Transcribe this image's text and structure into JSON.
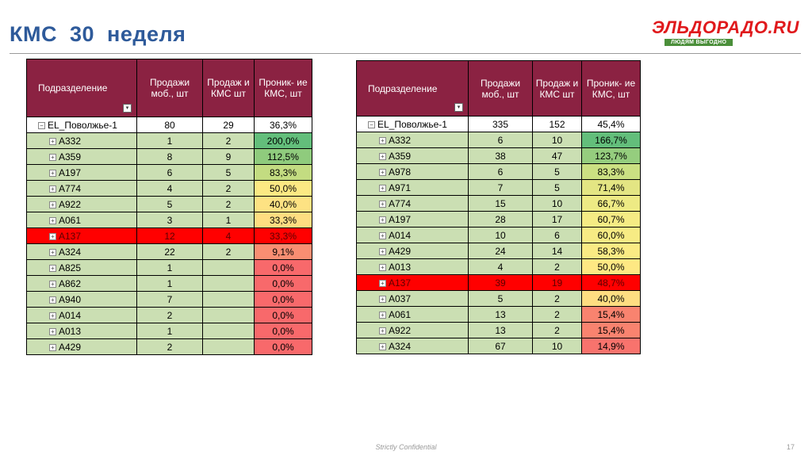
{
  "title": "КМС  30  неделя",
  "logo": {
    "text": "ЭЛЬДОРАДО.RU",
    "tagline": "ЛЮДЯМ ВЫГОДНО"
  },
  "colors": {
    "header_bg": "#8b2242",
    "row_green": "#cbdfb3",
    "highlight_red": "#ff0000",
    "title": "#2e5a9a"
  },
  "table_left": {
    "headers": {
      "division": "Подразделение",
      "sales_mobile": "Продажи моб., шт",
      "sales_kms": "Продаж и КМС шт",
      "penetration": "Проник- ие КМС, шт"
    },
    "rows": [
      {
        "name": "EL_Поволжье-1",
        "sales": "80",
        "kms": "29",
        "pct": "36,3%",
        "pct_color": "#ffffff",
        "total": true
      },
      {
        "name": "A332",
        "sales": "1",
        "kms": "2",
        "pct": "200,0%",
        "pct_color": "#63be7b"
      },
      {
        "name": "A359",
        "sales": "8",
        "kms": "9",
        "pct": "112,5%",
        "pct_color": "#8fcb7d"
      },
      {
        "name": "A197",
        "sales": "6",
        "kms": "5",
        "pct": "83,3%",
        "pct_color": "#c3dc81"
      },
      {
        "name": "A774",
        "sales": "4",
        "kms": "2",
        "pct": "50,0%",
        "pct_color": "#fce983"
      },
      {
        "name": "A922",
        "sales": "5",
        "kms": "2",
        "pct": "40,0%",
        "pct_color": "#fde283"
      },
      {
        "name": "A061",
        "sales": "3",
        "kms": "1",
        "pct": "33,3%",
        "pct_color": "#fedd81"
      },
      {
        "name": "A137",
        "sales": "12",
        "kms": "4",
        "pct": "33,3%",
        "pct_color": "#fedd81",
        "red": true
      },
      {
        "name": "A324",
        "sales": "22",
        "kms": "2",
        "pct": "9,1%",
        "pct_color": "#f98e72"
      },
      {
        "name": "A825",
        "sales": "1",
        "kms": "",
        "pct": "0,0%",
        "pct_color": "#f8696b"
      },
      {
        "name": "A862",
        "sales": "1",
        "kms": "",
        "pct": "0,0%",
        "pct_color": "#f8696b"
      },
      {
        "name": "A940",
        "sales": "7",
        "kms": "",
        "pct": "0,0%",
        "pct_color": "#f8696b"
      },
      {
        "name": "A014",
        "sales": "2",
        "kms": "",
        "pct": "0,0%",
        "pct_color": "#f8696b"
      },
      {
        "name": "A013",
        "sales": "1",
        "kms": "",
        "pct": "0,0%",
        "pct_color": "#f8696b"
      },
      {
        "name": "A429",
        "sales": "2",
        "kms": "",
        "pct": "0,0%",
        "pct_color": "#f8696b"
      }
    ]
  },
  "table_right": {
    "headers": {
      "division": "Подразделение",
      "sales_mobile": "Продажи моб., шт",
      "sales_kms": "Продаж и КМС шт",
      "penetration": "Проник- ие КМС, шт"
    },
    "rows": [
      {
        "name": "EL_Поволжье-1",
        "sales": "335",
        "kms": "152",
        "pct": "45,4%",
        "pct_color": "#ffffff",
        "total": true
      },
      {
        "name": "A332",
        "sales": "6",
        "kms": "10",
        "pct": "166,7%",
        "pct_color": "#63be7b"
      },
      {
        "name": "A359",
        "sales": "38",
        "kms": "47",
        "pct": "123,7%",
        "pct_color": "#95cd7e"
      },
      {
        "name": "A978",
        "sales": "6",
        "kms": "5",
        "pct": "83,3%",
        "pct_color": "#cbe082"
      },
      {
        "name": "A971",
        "sales": "7",
        "kms": "5",
        "pct": "71,4%",
        "pct_color": "#e3e583"
      },
      {
        "name": "A774",
        "sales": "15",
        "kms": "10",
        "pct": "66,7%",
        "pct_color": "#edea84"
      },
      {
        "name": "A197",
        "sales": "28",
        "kms": "17",
        "pct": "60,7%",
        "pct_color": "#f5eb84"
      },
      {
        "name": "A014",
        "sales": "10",
        "kms": "6",
        "pct": "60,0%",
        "pct_color": "#f7eb84"
      },
      {
        "name": "A429",
        "sales": "24",
        "kms": "14",
        "pct": "58,3%",
        "pct_color": "#faeb84"
      },
      {
        "name": "A013",
        "sales": "4",
        "kms": "2",
        "pct": "50,0%",
        "pct_color": "#fee883"
      },
      {
        "name": "A137",
        "sales": "39",
        "kms": "19",
        "pct": "48,7%",
        "pct_color": "#fee282",
        "red": true
      },
      {
        "name": "A037",
        "sales": "5",
        "kms": "2",
        "pct": "40,0%",
        "pct_color": "#fedd81"
      },
      {
        "name": "A061",
        "sales": "13",
        "kms": "2",
        "pct": "15,4%",
        "pct_color": "#f9836f"
      },
      {
        "name": "A922",
        "sales": "13",
        "kms": "2",
        "pct": "15,4%",
        "pct_color": "#f9836f"
      },
      {
        "name": "A324",
        "sales": "67",
        "kms": "10",
        "pct": "14,9%",
        "pct_color": "#f8736d"
      }
    ]
  },
  "footer": {
    "confidential": "Strictly Confidential",
    "page_number": "17"
  }
}
